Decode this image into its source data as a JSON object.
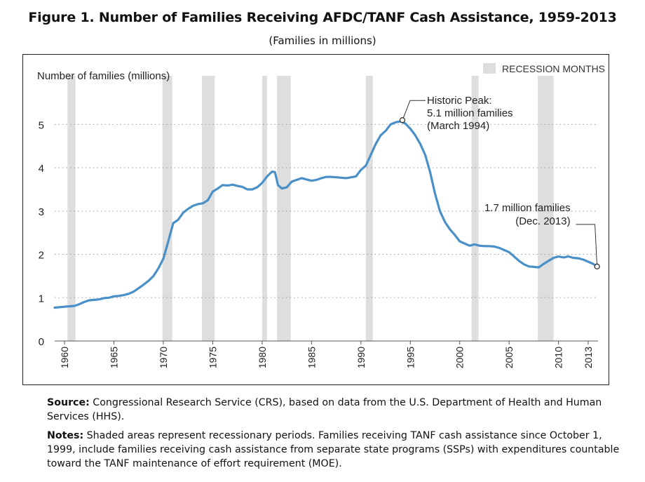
{
  "title": "Figure 1. Number of Families Receiving AFDC/TANF Cash Assistance, 1959-2013",
  "subtitle": "(Families in millions)",
  "legend_label": "RECESSION MONTHS",
  "colors": {
    "line": "#4a90c8",
    "recession": "#dedede",
    "grid": "#9a9a9a",
    "marker_fill": "#ffffff",
    "frame": "#222222"
  },
  "chart_data": {
    "type": "line",
    "title": "Figure 1. Number of Families Receiving AFDC/TANF Cash Assistance, 1959-2013",
    "subtitle": "(Families in millions)",
    "xlabel": "",
    "ylabel": "Number of families (millions)",
    "xlim": [
      1959.0,
      2014.0
    ],
    "ylim": [
      0,
      5.5
    ],
    "yticks": [
      0,
      1,
      2,
      3,
      4,
      5
    ],
    "xticks": [
      "1960",
      "1965",
      "1970",
      "1975",
      "1980",
      "1985",
      "1990",
      "1995",
      "2000",
      "2005",
      "2010",
      "2013"
    ],
    "grid": true,
    "legend": "top-right",
    "recessions": [
      [
        1960.3,
        1961.1
      ],
      [
        1969.9,
        1970.9
      ],
      [
        1973.9,
        1975.2
      ],
      [
        1980.0,
        1980.5
      ],
      [
        1981.5,
        1982.9
      ],
      [
        1990.5,
        1991.2
      ],
      [
        2001.2,
        2001.9
      ],
      [
        2007.9,
        2009.5
      ]
    ],
    "series": [
      {
        "x": [
          1959.0,
          1960.0,
          1960.5,
          1961.0,
          1961.5,
          1962.0,
          1962.5,
          1963.0,
          1963.5,
          1964.0,
          1964.5,
          1965.0,
          1965.5,
          1966.0,
          1966.5,
          1967.0,
          1967.5,
          1968.0,
          1968.5,
          1969.0,
          1969.5,
          1970.0,
          1970.5,
          1971.0,
          1971.5,
          1972.0,
          1972.5,
          1973.0,
          1973.5,
          1974.0,
          1974.5,
          1975.0,
          1975.5,
          1976.0,
          1976.5,
          1977.0,
          1977.5,
          1978.0,
          1978.5,
          1979.0,
          1979.5,
          1980.0,
          1980.5,
          1981.0,
          1981.3,
          1981.6,
          1982.0,
          1982.5,
          1983.0,
          1983.5,
          1984.0,
          1984.5,
          1985.0,
          1985.5,
          1986.0,
          1986.5,
          1987.0,
          1987.5,
          1988.0,
          1988.5,
          1989.0,
          1989.5,
          1990.0,
          1990.5,
          1991.0,
          1991.5,
          1992.0,
          1992.5,
          1993.0,
          1993.5,
          1994.0,
          1994.5,
          1995.0,
          1995.5,
          1996.0,
          1996.5,
          1997.0,
          1997.5,
          1998.0,
          1998.5,
          1999.0,
          1999.5,
          2000.0,
          2000.5,
          2001.0,
          2001.5,
          2002.0,
          2002.5,
          2003.0,
          2003.5,
          2004.0,
          2004.5,
          2005.0,
          2005.5,
          2006.0,
          2006.5,
          2007.0,
          2007.5,
          2008.0,
          2008.5,
          2009.0,
          2009.5,
          2010.0,
          2010.5,
          2011.0,
          2011.5,
          2012.0,
          2012.5,
          2013.0,
          2013.5,
          2013.9
        ],
        "y": [
          0.77,
          0.79,
          0.8,
          0.81,
          0.85,
          0.9,
          0.94,
          0.95,
          0.96,
          0.99,
          1.0,
          1.03,
          1.04,
          1.06,
          1.09,
          1.14,
          1.22,
          1.3,
          1.39,
          1.5,
          1.68,
          1.9,
          2.3,
          2.72,
          2.8,
          2.96,
          3.05,
          3.12,
          3.16,
          3.18,
          3.25,
          3.45,
          3.52,
          3.6,
          3.59,
          3.61,
          3.58,
          3.56,
          3.5,
          3.5,
          3.55,
          3.65,
          3.8,
          3.91,
          3.9,
          3.6,
          3.52,
          3.55,
          3.68,
          3.72,
          3.76,
          3.73,
          3.7,
          3.72,
          3.76,
          3.79,
          3.79,
          3.78,
          3.77,
          3.76,
          3.78,
          3.8,
          3.95,
          4.05,
          4.3,
          4.55,
          4.75,
          4.85,
          5.0,
          5.05,
          5.07,
          5.02,
          4.9,
          4.75,
          4.55,
          4.3,
          3.9,
          3.4,
          3.0,
          2.75,
          2.58,
          2.45,
          2.3,
          2.25,
          2.2,
          2.23,
          2.2,
          2.19,
          2.19,
          2.18,
          2.15,
          2.1,
          2.05,
          1.95,
          1.85,
          1.77,
          1.72,
          1.71,
          1.7,
          1.78,
          1.85,
          1.92,
          1.95,
          1.93,
          1.95,
          1.92,
          1.91,
          1.88,
          1.83,
          1.78,
          1.72
        ]
      }
    ],
    "annotations": [
      {
        "lines": [
          "Historic Peak:",
          "5.1 million families",
          "(March 1994)"
        ],
        "x": 1994.2,
        "y": 5.1
      },
      {
        "lines": [
          "1.7 million families",
          "(Dec. 2013)"
        ],
        "x": 2013.9,
        "y": 1.72
      }
    ]
  },
  "notes": {
    "source_label": "Source:",
    "source_text": " Congressional Research Service (CRS), based on data from the U.S. Department of Health and Human Services (HHS).",
    "notes_label": "Notes:",
    "notes_text": " Shaded areas represent recessionary periods. Families receiving TANF cash assistance since October 1, 1999, include families receiving cash assistance from separate state programs (SSPs) with expenditures countable toward the TANF maintenance of effort requirement (MOE)."
  }
}
